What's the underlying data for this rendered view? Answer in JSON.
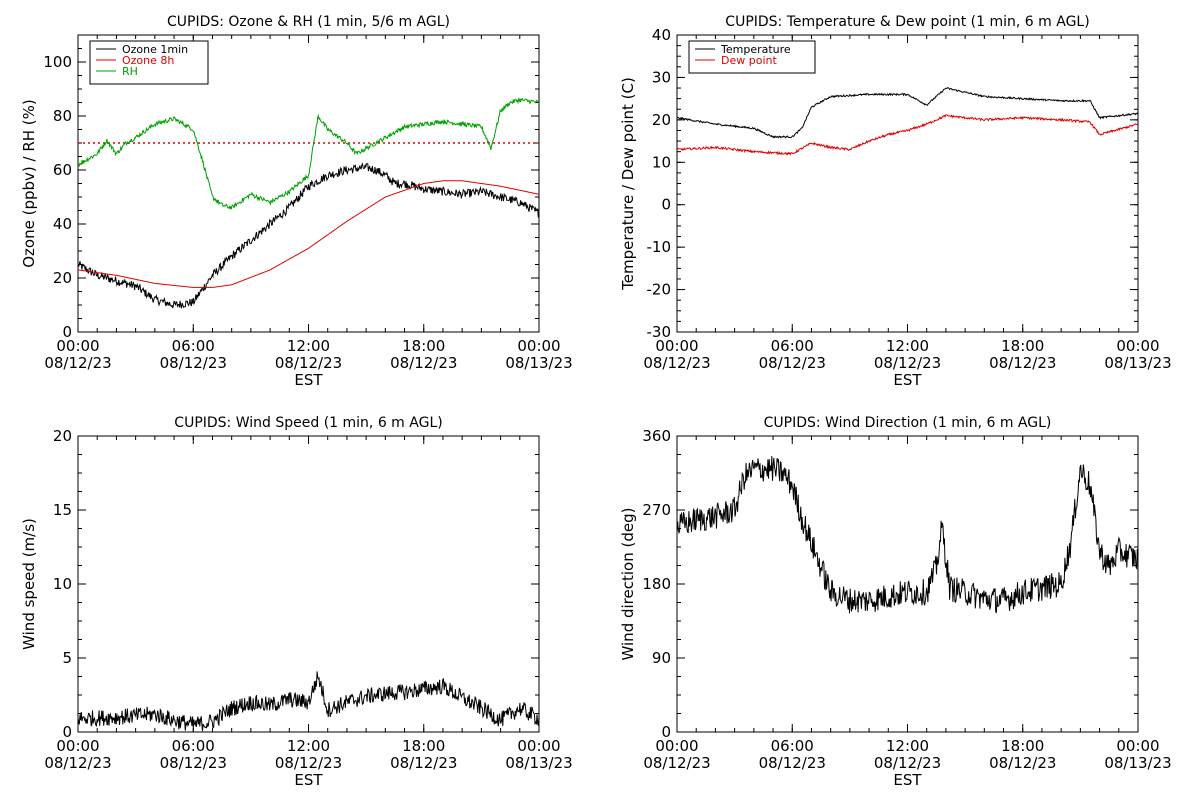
{
  "chart_data": [
    {
      "type": "line",
      "title": "CUPIDS: Ozone & RH (1 min, 5/6 m AGL)",
      "xlabel": "EST",
      "ylabel": "Ozone (ppbv) / RH (%)",
      "xlim": [
        "2023-08-12T00:00",
        "2023-08-13T00:00"
      ],
      "ylim": [
        0,
        110
      ],
      "yticks": [
        0,
        20,
        40,
        60,
        80,
        100
      ],
      "xtick_times": [
        "00:00",
        "06:00",
        "12:00",
        "18:00",
        "00:00"
      ],
      "xtick_dates": [
        "08/12/23",
        "08/12/23",
        "08/12/23",
        "08/12/23",
        "08/13/23"
      ],
      "legend_position": "top-left",
      "reference_line": {
        "y": 70,
        "color": "#e00000",
        "style": "dotted"
      },
      "series": [
        {
          "name": "Ozone 1min",
          "color": "#000000",
          "noise": 1.6,
          "x": [
            0,
            1,
            2,
            3,
            4,
            5,
            6,
            6.5,
            7,
            8,
            9,
            10,
            11,
            12,
            13,
            14,
            15,
            15.5,
            16,
            16.5,
            17,
            18,
            19,
            20,
            21,
            22,
            23,
            24
          ],
          "y": [
            25,
            21,
            19,
            17,
            12,
            10,
            11,
            16,
            21,
            28,
            34,
            40,
            46,
            54,
            58,
            60,
            61,
            60,
            58,
            55,
            55,
            53,
            52,
            51,
            52,
            50,
            48,
            44
          ]
        },
        {
          "name": "Ozone 8h",
          "color": "#e00000",
          "noise": 0,
          "x": [
            0,
            2,
            4,
            6,
            7,
            8,
            10,
            12,
            14,
            16,
            18,
            19,
            20,
            22,
            24
          ],
          "y": [
            23,
            21,
            18,
            16.5,
            16.5,
            17.5,
            23,
            31,
            41,
            50,
            55,
            56,
            56,
            54,
            51
          ]
        },
        {
          "name": "RH",
          "color": "#00a000",
          "noise": 0.8,
          "x": [
            0,
            1,
            1.5,
            2,
            2.5,
            3,
            4,
            5,
            6,
            6.5,
            7,
            7.5,
            8,
            9,
            10,
            11,
            12,
            12.5,
            13,
            14,
            14.5,
            15,
            16,
            17,
            18,
            19,
            20,
            21,
            21.5,
            22,
            22.5,
            23,
            24
          ],
          "y": [
            62,
            66,
            71,
            66,
            70,
            72,
            77,
            79,
            75,
            63,
            50,
            47,
            46,
            51,
            48,
            52,
            58,
            80,
            75,
            70,
            66,
            68,
            72,
            76,
            77,
            78,
            77,
            76,
            68,
            82,
            85,
            86,
            85
          ]
        }
      ]
    },
    {
      "type": "line",
      "title": "CUPIDS: Temperature & Dew point (1 min, 6 m AGL)",
      "xlabel": "EST",
      "ylabel": "Temperature / Dew point (C)",
      "xlim": [
        "2023-08-12T00:00",
        "2023-08-13T00:00"
      ],
      "ylim": [
        -30,
        40
      ],
      "yticks": [
        -30,
        -20,
        -10,
        0,
        10,
        20,
        30,
        40
      ],
      "xtick_times": [
        "00:00",
        "06:00",
        "12:00",
        "18:00",
        "00:00"
      ],
      "xtick_dates": [
        "08/12/23",
        "08/12/23",
        "08/12/23",
        "08/12/23",
        "08/13/23"
      ],
      "legend_position": "top-left",
      "series": [
        {
          "name": "Temperature",
          "color": "#000000",
          "noise": 0.2,
          "x": [
            0,
            2,
            4,
            5,
            6,
            6.5,
            7,
            8,
            10,
            12,
            13,
            13.5,
            14,
            15,
            16,
            18,
            20,
            21.5,
            22,
            24
          ],
          "y": [
            20.5,
            19,
            18,
            16,
            16,
            18,
            23,
            25.5,
            26,
            26,
            23.5,
            25.5,
            27.5,
            26.5,
            25.5,
            25,
            24.5,
            24.5,
            20.5,
            21.5
          ]
        },
        {
          "name": "Dew point",
          "color": "#e00000",
          "noise": 0.25,
          "x": [
            0,
            2,
            4,
            6,
            7,
            8,
            9,
            10,
            11,
            12,
            13,
            14,
            16,
            18,
            20,
            21.5,
            22,
            24
          ],
          "y": [
            13,
            13.5,
            12.5,
            12,
            14.5,
            13.5,
            13,
            15,
            16.5,
            17.5,
            19,
            21,
            20,
            20.5,
            20,
            19.5,
            16.5,
            19
          ]
        }
      ]
    },
    {
      "type": "line",
      "title": "CUPIDS: Wind Speed (1 min, 6 m AGL)",
      "xlabel": "EST",
      "ylabel": "Wind speed (m/s)",
      "xlim": [
        "2023-08-12T00:00",
        "2023-08-13T00:00"
      ],
      "ylim": [
        0,
        20
      ],
      "yticks": [
        0,
        5,
        10,
        15,
        20
      ],
      "xtick_times": [
        "00:00",
        "06:00",
        "12:00",
        "18:00",
        "00:00"
      ],
      "xtick_dates": [
        "08/12/23",
        "08/12/23",
        "08/12/23",
        "08/12/23",
        "08/13/23"
      ],
      "series": [
        {
          "color": "#000000",
          "noise": 0.55,
          "x": [
            0,
            2,
            4,
            5,
            6,
            7,
            8,
            9,
            10,
            11,
            12,
            12.5,
            13,
            14,
            15,
            16,
            17,
            18,
            19,
            20,
            21,
            22,
            23,
            24
          ],
          "y": [
            0.9,
            1.0,
            1.2,
            0.8,
            0.5,
            0.7,
            1.6,
            2.0,
            1.8,
            2.2,
            2.0,
            3.8,
            1.5,
            2.0,
            2.4,
            2.6,
            2.7,
            2.9,
            3.1,
            2.3,
            1.6,
            0.8,
            1.6,
            0.9
          ]
        }
      ]
    },
    {
      "type": "line",
      "title": "CUPIDS: Wind Direction (1 min, 6 m AGL)",
      "xlabel": "EST",
      "ylabel": "Wind direction (deg)",
      "xlim": [
        "2023-08-12T00:00",
        "2023-08-13T00:00"
      ],
      "ylim": [
        0,
        360
      ],
      "yticks": [
        0,
        90,
        180,
        270,
        360
      ],
      "xtick_times": [
        "00:00",
        "06:00",
        "12:00",
        "18:00",
        "00:00"
      ],
      "xtick_dates": [
        "08/12/23",
        "08/12/23",
        "08/12/23",
        "08/12/23",
        "08/13/23"
      ],
      "series": [
        {
          "color": "#000000",
          "noise": 16,
          "x": [
            0,
            1,
            2,
            3,
            3.5,
            4,
            5,
            5.5,
            6,
            6.5,
            7,
            7.5,
            8,
            9,
            10,
            11,
            12,
            13,
            13.5,
            13.8,
            14.2,
            15,
            16,
            17,
            18,
            19,
            20,
            20.5,
            21,
            21.5,
            22,
            22.5,
            23,
            24
          ],
          "y": [
            250,
            258,
            262,
            270,
            310,
            320,
            320,
            315,
            300,
            260,
            230,
            200,
            170,
            160,
            160,
            165,
            170,
            170,
            200,
            250,
            175,
            170,
            162,
            160,
            170,
            175,
            180,
            230,
            320,
            300,
            220,
            200,
            220,
            210
          ]
        }
      ]
    }
  ]
}
